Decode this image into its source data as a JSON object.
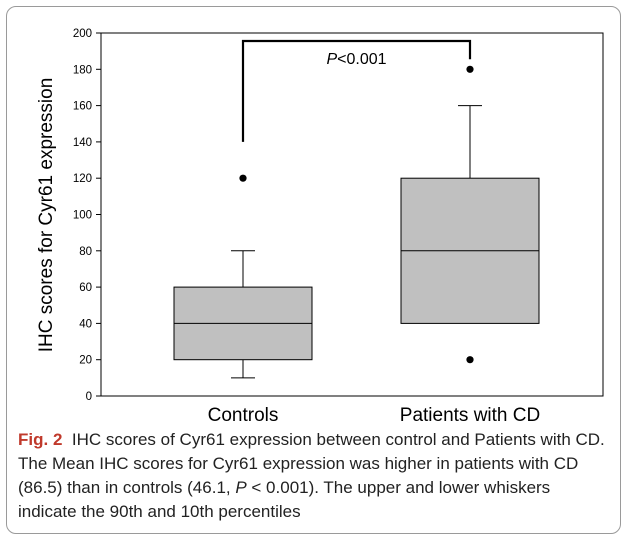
{
  "chart_data": {
    "type": "box",
    "ylabel": "IHC scores for Cyr61 expression",
    "ylim": [
      0,
      200
    ],
    "yticks": [
      0,
      20,
      40,
      60,
      80,
      100,
      120,
      140,
      160,
      180,
      200
    ],
    "categories": [
      "Controls",
      "Patients with CD"
    ],
    "boxes": [
      {
        "category": "Controls",
        "whisker_low": 10,
        "q1": 20,
        "median": 40,
        "q3": 60,
        "whisker_high": 80,
        "outliers": [
          120
        ]
      },
      {
        "category": "Patients with CD",
        "whisker_low": 40,
        "q1": 40,
        "median": 80,
        "q3": 120,
        "whisker_high": 160,
        "outliers": [
          20,
          180
        ]
      }
    ],
    "bracket_bottom": [
      140,
      180
    ],
    "annotation": {
      "p_letter": "P",
      "rest": "<0.001"
    }
  },
  "caption": {
    "label": "Fig. 2",
    "part1": "IHC scores of Cyr61 expression between control and Patients with CD. The Mean IHC scores for Cyr61 expression was higher in patients with CD (86.5) than in controls (46.1, ",
    "p": "P",
    "part2": " < 0.001). The upper and lower whiskers indicate the 90th and 10th percentiles"
  },
  "colors": {
    "box_fill": "#c0c0c0",
    "axis": "#000000",
    "caption_label": "#c0392b"
  }
}
